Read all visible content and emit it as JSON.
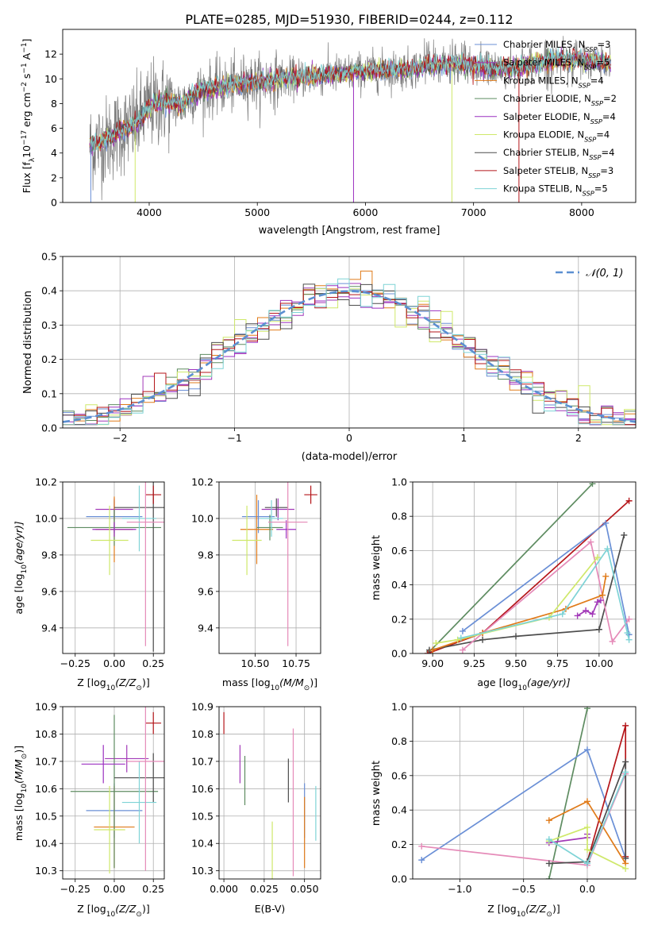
{
  "colors": {
    "chabrier_miles": "#6a8fd6",
    "salpeter_miles": "#a239b8",
    "kroupa_miles": "#e07b1a",
    "chabrier_elodie": "#5e8c61",
    "salpeter_elodie": "#9b30c0",
    "kroupa_elodie": "#cfe86a",
    "chabrier_stelib": "#4d4d4d",
    "salpeter_stelib": "#b5161a",
    "kroupa_stelib": "#7ed3d6",
    "pink": "#e58ab8",
    "normal": "#5b8fd1"
  },
  "chart_data": [
    {
      "id": "spectrum",
      "type": "line",
      "title": "PLATE=0285, MJD=51930, FIBERID=0244, z=0.112",
      "xlabel": "wavelength [Angstrom, rest frame]",
      "ylabel": "Flux [f",
      "ylabel_parts": [
        "Flux [f",
        "λ",
        "10",
        "−17",
        " erg cm",
        "−2",
        " s",
        "−1",
        " A",
        "−1",
        "]"
      ],
      "xlim": [
        3200,
        8500
      ],
      "ylim": [
        0,
        14
      ],
      "xticks": [
        4000,
        5000,
        6000,
        7000,
        8000
      ],
      "yticks": [
        0,
        2,
        4,
        6,
        8,
        10,
        12
      ],
      "continuum": {
        "x": [
          3450,
          3600,
          3700,
          3800,
          3900,
          4000,
          4100,
          4200,
          4300,
          4400,
          4500,
          4600,
          4700,
          4800,
          4900,
          5000,
          5200,
          5400,
          5600,
          5800,
          6000,
          6200,
          6400,
          6600,
          6800,
          7000,
          7200,
          7400,
          7600,
          7800,
          8000,
          8200,
          8270
        ],
        "y": [
          4.6,
          5.0,
          5.6,
          6.0,
          6.5,
          7.8,
          8.1,
          8.1,
          7.9,
          8.7,
          9.1,
          9.2,
          9.4,
          9.5,
          9.8,
          9.7,
          10.0,
          10.1,
          10.3,
          10.4,
          10.6,
          10.7,
          10.8,
          11.0,
          11.2,
          11.1,
          10.8,
          10.9,
          11.2,
          11.6,
          11.5,
          11.3,
          11.3
        ]
      },
      "legend": [
        {
          "name": "Chabrier MILES, N",
          "sub": "SSP",
          "val": "=3",
          "color": "#6a8fd6"
        },
        {
          "name": "Salpeter MILES, N",
          "sub": "SSP",
          "val": "=5",
          "color": "#a239b8"
        },
        {
          "name": "Kroupa MILES, N",
          "sub": "SSP",
          "val": "=4",
          "color": "#e07b1a"
        },
        {
          "name": "Chabrier ELODIE, N",
          "sub": "SSP",
          "val": "=2",
          "color": "#5e8c61"
        },
        {
          "name": "Salpeter ELODIE, N",
          "sub": "SSP",
          "val": "=4",
          "color": "#9b30c0"
        },
        {
          "name": "Kroupa ELODIE, N",
          "sub": "SSP",
          "val": "=4",
          "color": "#cfe86a"
        },
        {
          "name": "Chabrier STELIB, N",
          "sub": "SSP",
          "val": "=4",
          "color": "#4d4d4d"
        },
        {
          "name": "Salpeter STELIB, N",
          "sub": "SSP",
          "val": "=3",
          "color": "#b5161a"
        },
        {
          "name": "Kroupa STELIB, N",
          "sub": "SSP",
          "val": "=5",
          "color": "#7ed3d6"
        }
      ],
      "legend_placement": "top-right",
      "grid": false
    },
    {
      "id": "residuals",
      "type": "histogram",
      "xlabel": "(data-model)/error",
      "ylabel": "Normed distribution",
      "xlim": [
        -2.5,
        2.5
      ],
      "ylim": [
        0,
        0.5
      ],
      "xticks": [
        -2,
        -1,
        0,
        1,
        2
      ],
      "yticks": [
        0.0,
        0.1,
        0.2,
        0.3,
        0.4,
        0.5
      ],
      "bin_width": 0.1,
      "legend": [
        {
          "name": "𝒩(0, 1)",
          "style": "dashed",
          "color": "#5b8fd1"
        }
      ],
      "legend_placement": "top-right",
      "grid": true
    },
    {
      "id": "age-vs-z",
      "type": "errorbar",
      "xlabel": "Z [log",
      "xlabel_parts": [
        "Z [log",
        "10",
        "(Z/Z",
        "⊙",
        ")]"
      ],
      "ylabel_parts": [
        "age  [log",
        "10",
        "(age/yr)]"
      ],
      "xlim": [
        -0.33,
        0.32
      ],
      "ylim": [
        9.26,
        10.2
      ],
      "xticks": [
        -0.25,
        0.0,
        0.25
      ],
      "yticks": [
        9.4,
        9.6,
        9.8,
        10.0,
        10.2
      ],
      "grid": true,
      "points": [
        {
          "x": 0.0,
          "xerr": 0.18,
          "y": 10.01,
          "yerr": 0.09,
          "color": "#6a8fd6"
        },
        {
          "x": 0.0,
          "xerr": 0.12,
          "y": 10.05,
          "yerr": 0.06,
          "color": "#a239b8"
        },
        {
          "x": 0.0,
          "xerr": 0.12,
          "y": 9.94,
          "yerr": 0.18,
          "color": "#e07b1a"
        },
        {
          "x": 0.0,
          "xerr": 0.3,
          "y": 9.95,
          "yerr": 0.1,
          "color": "#5e8c61"
        },
        {
          "x": 0.0,
          "xerr": 0.14,
          "y": 9.94,
          "yerr": 0.04,
          "color": "#9b30c0"
        },
        {
          "x": -0.03,
          "xerr": 0.12,
          "y": 9.88,
          "yerr": 0.19,
          "color": "#cfe86a"
        },
        {
          "x": 0.25,
          "xerr": 0.25,
          "y": 10.06,
          "yerr": 0.79,
          "color": "#4d4d4d"
        },
        {
          "x": 0.25,
          "xerr": 0.05,
          "y": 10.13,
          "yerr": 0.05,
          "color": "#b5161a"
        },
        {
          "x": 0.16,
          "xerr": 0.11,
          "y": 10.0,
          "yerr": 0.18,
          "color": "#7ed3d6"
        },
        {
          "x": 0.2,
          "xerr": 0.12,
          "y": 9.98,
          "yerr": 0.68,
          "color": "#e58ab8"
        }
      ]
    },
    {
      "id": "age-vs-mass",
      "type": "errorbar",
      "xlabel_parts": [
        "mass [log",
        "10",
        "(M/M",
        "⊙",
        ")]"
      ],
      "xlim": [
        10.28,
        10.9
      ],
      "ylim": [
        9.26,
        10.2
      ],
      "xticks": [
        10.5,
        10.75
      ],
      "yticks": [
        9.4,
        9.6,
        9.8,
        10.0,
        10.2
      ],
      "grid": true,
      "points": [
        {
          "x": 10.52,
          "xerr": 0.1,
          "y": 10.01,
          "yerr": 0.09,
          "color": "#6a8fd6"
        },
        {
          "x": 10.64,
          "xerr": 0.1,
          "y": 10.05,
          "yerr": 0.06,
          "color": "#a239b8"
        },
        {
          "x": 10.51,
          "xerr": 0.1,
          "y": 9.94,
          "yerr": 0.19,
          "color": "#e07b1a"
        },
        {
          "x": 10.59,
          "xerr": 0.08,
          "y": 9.95,
          "yerr": 0.07,
          "color": "#5e8c61"
        },
        {
          "x": 10.69,
          "xerr": 0.06,
          "y": 9.94,
          "yerr": 0.05,
          "color": "#9b30c0"
        },
        {
          "x": 10.45,
          "xerr": 0.09,
          "y": 9.88,
          "yerr": 0.19,
          "color": "#cfe86a"
        },
        {
          "x": 10.63,
          "xerr": 0.07,
          "y": 10.06,
          "yerr": 0.05,
          "color": "#4d4d4d"
        },
        {
          "x": 10.84,
          "xerr": 0.04,
          "y": 10.13,
          "yerr": 0.05,
          "color": "#b5161a"
        },
        {
          "x": 10.6,
          "xerr": 0.07,
          "y": 10.0,
          "yerr": 0.1,
          "color": "#7ed3d6"
        },
        {
          "x": 10.7,
          "xerr": 0.12,
          "y": 9.98,
          "yerr": 0.68,
          "color": "#e58ab8"
        }
      ]
    },
    {
      "id": "weight-vs-age",
      "type": "line",
      "xlabel_parts": [
        "age  [log",
        "10",
        "(age/yr)]"
      ],
      "ylabel": "mass weight",
      "xlim": [
        8.88,
        10.22
      ],
      "ylim": [
        0,
        1.0
      ],
      "xticks": [
        9.0,
        9.25,
        9.5,
        9.75,
        10.0
      ],
      "yticks": [
        0.0,
        0.2,
        0.4,
        0.6,
        0.8,
        1.0
      ],
      "grid": true,
      "series": [
        {
          "color": "#5e8c61",
          "x": [
            8.98,
            9.96
          ],
          "y": [
            0.01,
            0.99
          ]
        },
        {
          "color": "#b5161a",
          "x": [
            8.97,
            9.3,
            10.18
          ],
          "y": [
            0.0,
            0.12,
            0.89
          ]
        },
        {
          "color": "#6a8fd6",
          "x": [
            9.18,
            10.04,
            10.18
          ],
          "y": [
            0.13,
            0.76,
            0.11
          ]
        },
        {
          "color": "#4d4d4d",
          "x": [
            8.98,
            9.3,
            9.5,
            10.0,
            10.15
          ],
          "y": [
            0.02,
            0.08,
            0.1,
            0.14,
            0.69
          ]
        },
        {
          "color": "#e58ab8",
          "x": [
            9.18,
            9.95,
            10.08,
            10.18
          ],
          "y": [
            0.02,
            0.65,
            0.07,
            0.2
          ]
        },
        {
          "color": "#e07b1a",
          "x": [
            9.0,
            9.3,
            9.8,
            10.02,
            10.04
          ],
          "y": [
            0.02,
            0.12,
            0.26,
            0.34,
            0.45
          ]
        },
        {
          "color": "#a239b8",
          "x": [
            9.87,
            9.92,
            9.96,
            9.99,
            10.01
          ],
          "y": [
            0.22,
            0.25,
            0.23,
            0.3,
            0.31
          ]
        },
        {
          "color": "#cfe86a",
          "x": [
            9.02,
            9.15,
            9.7,
            9.99
          ],
          "y": [
            0.06,
            0.08,
            0.21,
            0.56
          ]
        },
        {
          "color": "#7ed3d6",
          "x": [
            9.17,
            9.78,
            10.05,
            10.17,
            10.18
          ],
          "y": [
            0.09,
            0.23,
            0.61,
            0.12,
            0.08
          ]
        }
      ]
    },
    {
      "id": "mass-vs-z",
      "type": "errorbar",
      "xlabel_parts": [
        "Z [log",
        "10",
        "(Z/Z",
        "⊙",
        ")]"
      ],
      "ylabel_parts": [
        "mass [log",
        "10",
        "(M/M",
        "⊙",
        ")]"
      ],
      "xlim": [
        -0.33,
        0.32
      ],
      "ylim": [
        10.27,
        10.9
      ],
      "xticks": [
        -0.25,
        0.0,
        0.25
      ],
      "yticks": [
        10.3,
        10.4,
        10.5,
        10.6,
        10.7,
        10.8,
        10.9
      ],
      "grid": true,
      "points": [
        {
          "x": 0.0,
          "xerr": 0.18,
          "y": 10.52,
          "yerr": 0.1,
          "color": "#6a8fd6"
        },
        {
          "x": 0.08,
          "xerr": 0.14,
          "y": 10.71,
          "yerr": 0.05,
          "color": "#a239b8"
        },
        {
          "x": 0.0,
          "xerr": 0.13,
          "y": 10.46,
          "yerr": 0.15,
          "color": "#e07b1a"
        },
        {
          "x": 0.0,
          "xerr": 0.28,
          "y": 10.59,
          "yerr": 0.28,
          "color": "#5e8c61"
        },
        {
          "x": -0.07,
          "xerr": 0.14,
          "y": 10.69,
          "yerr": 0.07,
          "color": "#9b30c0"
        },
        {
          "x": -0.03,
          "xerr": 0.1,
          "y": 10.45,
          "yerr": 0.16,
          "color": "#cfe86a"
        },
        {
          "x": 0.25,
          "xerr": 0.25,
          "y": 10.64,
          "yerr": 0.09,
          "color": "#4d4d4d"
        },
        {
          "x": 0.25,
          "xerr": 0.05,
          "y": 10.84,
          "yerr": 0.04,
          "color": "#b5161a"
        },
        {
          "x": 0.16,
          "xerr": 0.11,
          "y": 10.55,
          "yerr": 0.15,
          "color": "#7ed3d6"
        },
        {
          "x": 0.2,
          "xerr": 0.12,
          "y": 10.7,
          "yerr": 0.4,
          "color": "#e58ab8"
        }
      ]
    },
    {
      "id": "mass-vs-ebv",
      "type": "errorbar",
      "xlabel": "E(B-V)",
      "xlim": [
        -0.003,
        0.06
      ],
      "ylim": [
        10.27,
        10.9
      ],
      "xticks": [
        0.0,
        0.025,
        0.05
      ],
      "yticks": [
        10.3,
        10.4,
        10.5,
        10.6,
        10.7,
        10.8,
        10.9
      ],
      "grid": true,
      "points": [
        {
          "x": 0.05,
          "xerr": 0,
          "y": 10.52,
          "yerr": 0.1,
          "color": "#6a8fd6"
        },
        {
          "x": 0.01,
          "xerr": 0,
          "y": 10.69,
          "yerr": 0.07,
          "color": "#a239b8"
        },
        {
          "x": 0.05,
          "xerr": 0,
          "y": 10.44,
          "yerr": 0.13,
          "color": "#e07b1a"
        },
        {
          "x": 0.013,
          "xerr": 0,
          "y": 10.63,
          "yerr": 0.09,
          "color": "#5e8c61"
        },
        {
          "x": 0.03,
          "xerr": 0,
          "y": 10.37,
          "yerr": 0.11,
          "color": "#cfe86a"
        },
        {
          "x": 0.04,
          "xerr": 0,
          "y": 10.63,
          "yerr": 0.08,
          "color": "#4d4d4d"
        },
        {
          "x": 0.0,
          "xerr": 0,
          "y": 10.84,
          "yerr": 0.04,
          "color": "#b5161a"
        },
        {
          "x": 0.057,
          "xerr": 0,
          "y": 10.51,
          "yerr": 0.1,
          "color": "#7ed3d6"
        },
        {
          "x": 0.043,
          "xerr": 0,
          "y": 10.55,
          "yerr": 0.27,
          "color": "#e58ab8"
        }
      ]
    },
    {
      "id": "weight-vs-z",
      "type": "line",
      "xlabel_parts": [
        "Z [log",
        "10",
        "(Z/Z",
        "⊙",
        ")]"
      ],
      "ylabel": "mass weight",
      "xlim": [
        -1.37,
        0.38
      ],
      "ylim": [
        0,
        1.0
      ],
      "xticks": [
        -1.0,
        -0.5,
        0.0
      ],
      "yticks": [
        0.0,
        0.2,
        0.4,
        0.6,
        0.8,
        1.0
      ],
      "grid": true,
      "series": [
        {
          "color": "#5e8c61",
          "x": [
            -0.3,
            0.0
          ],
          "y": [
            0.0,
            0.99
          ]
        },
        {
          "color": "#6a8fd6",
          "x": [
            -1.3,
            0.0,
            0.3
          ],
          "y": [
            0.11,
            0.75,
            0.12
          ]
        },
        {
          "color": "#e58ab8",
          "x": [
            -1.3,
            0.0,
            0.3
          ],
          "y": [
            0.19,
            0.08,
            0.61
          ]
        },
        {
          "color": "#b5161a",
          "x": [
            0.0,
            0.3,
            0.3
          ],
          "y": [
            0.1,
            0.89,
            0.13
          ]
        },
        {
          "color": "#4d4d4d",
          "x": [
            -0.3,
            0.0,
            0.3,
            0.3
          ],
          "y": [
            0.09,
            0.1,
            0.68,
            0.12
          ]
        },
        {
          "color": "#e07b1a",
          "x": [
            -0.3,
            0.0,
            0.3
          ],
          "y": [
            0.34,
            0.45,
            0.09
          ]
        },
        {
          "color": "#a239b8",
          "x": [
            -0.3,
            0.0,
            0.0
          ],
          "y": [
            0.21,
            0.24,
            0.26
          ]
        },
        {
          "color": "#cfe86a",
          "x": [
            -0.3,
            0.0,
            0.0,
            0.3
          ],
          "y": [
            0.22,
            0.3,
            0.17,
            0.06
          ]
        },
        {
          "color": "#7ed3d6",
          "x": [
            -0.3,
            0.0,
            0.3
          ],
          "y": [
            0.23,
            0.09,
            0.62
          ]
        }
      ]
    }
  ]
}
